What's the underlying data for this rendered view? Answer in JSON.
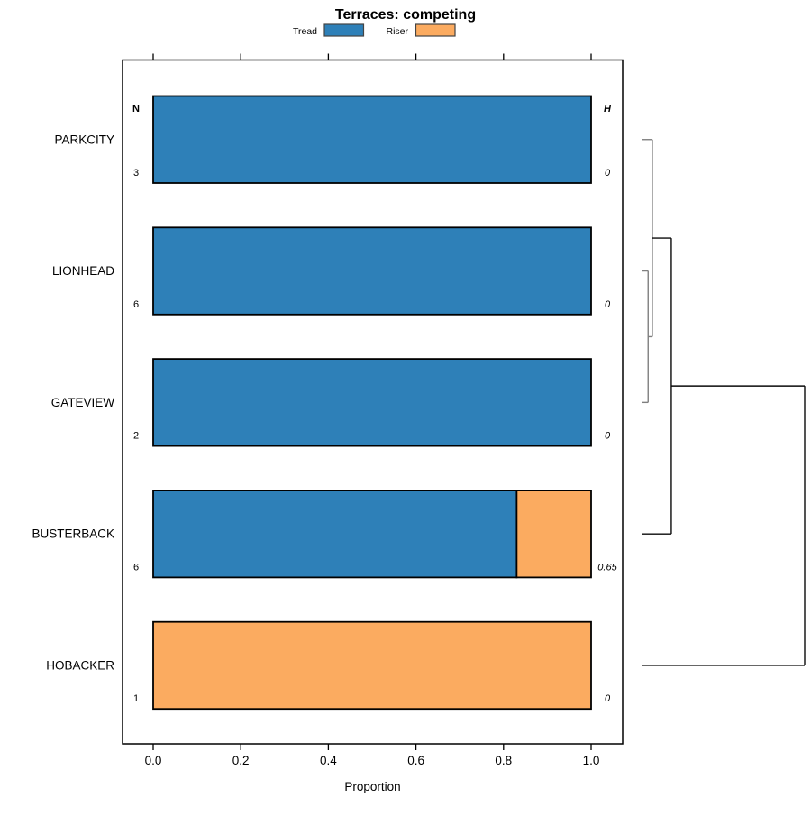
{
  "chart_data": {
    "type": "bar",
    "orientation": "horizontal",
    "stacked": true,
    "title": "Terraces: competing",
    "xlabel": "Proportion",
    "xlim": [
      0,
      1.07
    ],
    "xticks": [
      "0.0",
      "0.2",
      "0.4",
      "0.6",
      "0.8",
      "1.0"
    ],
    "xtick_values": [
      0,
      0.2,
      0.4,
      0.6,
      0.8,
      1.0
    ],
    "grid": false,
    "legend_position": "top",
    "categories": [
      "PARKCITY",
      "LIONHEAD",
      "GATEVIEW",
      "BUSTERBACK",
      "HOBACKER"
    ],
    "series": [
      {
        "name": "Tread",
        "color": "#2E80B8",
        "values": [
          1.0,
          1.0,
          1.0,
          0.83,
          0.0
        ]
      },
      {
        "name": "Riser",
        "color": "#FBAB60",
        "values": [
          0.0,
          0.0,
          0.0,
          0.17,
          1.0
        ]
      }
    ],
    "legend": {
      "entries": [
        {
          "label": "Tread",
          "color": "#2E80B8"
        },
        {
          "label": "Riser",
          "color": "#FBAB60"
        }
      ],
      "swatch_border_color": "#444444"
    },
    "row_annotations": {
      "left_header": "N",
      "right_header": "H",
      "N": [
        "3",
        "6",
        "2",
        "6",
        "1"
      ],
      "H": [
        "0",
        "0",
        "0",
        "0.65",
        "0"
      ]
    },
    "dendrogram": {
      "leaves": [
        "PARKCITY",
        "LIONHEAD",
        "GATEVIEW",
        "BUSTERBACK",
        "HOBACKER"
      ],
      "merges": [
        {
          "a": "LIONHEAD",
          "b": "GATEVIEW",
          "height": 0.04,
          "color": "#7f7f7f"
        },
        {
          "a": "PARKCITY",
          "b": "merge0",
          "height": 0.066,
          "color": "#7f7f7f"
        },
        {
          "a": "merge1",
          "b": "BUSTERBACK",
          "height": 0.182,
          "color": "#0a0a0a"
        },
        {
          "a": "merge2",
          "b": "HOBACKER",
          "height": 1.0,
          "color": "#0a0a0a"
        }
      ]
    },
    "frame_color": "#000000",
    "bar_border_color": "#000000"
  }
}
